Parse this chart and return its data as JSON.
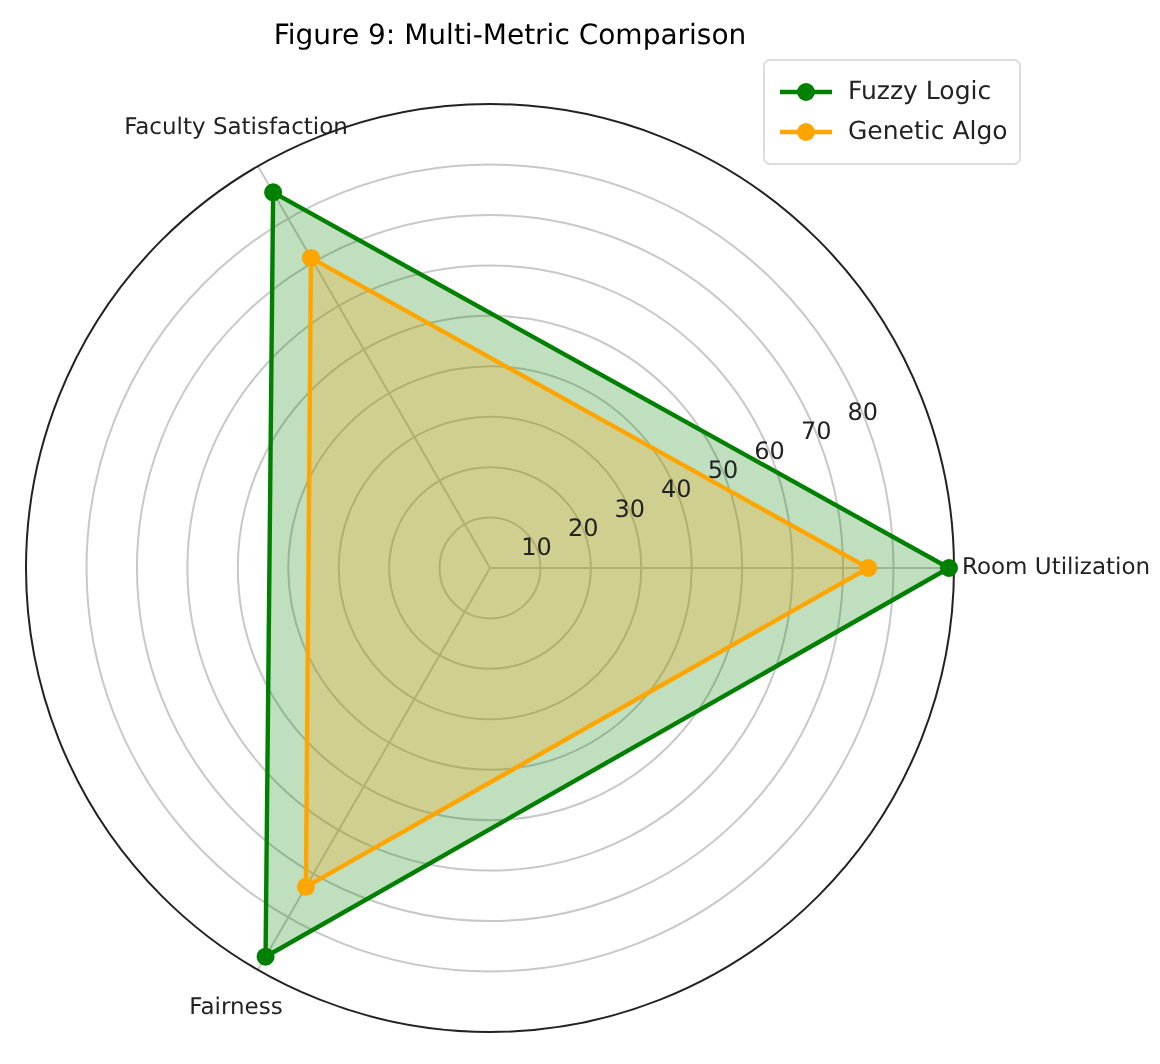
{
  "chart_data": {
    "type": "radar",
    "title": "Figure 9: Multi-Metric Comparison",
    "categories": [
      "Room Utilization",
      "Fairness",
      "Faculty Satisfaction"
    ],
    "series": [
      {
        "name": "Fuzzy Logic",
        "color": "#008000",
        "values": [
          91,
          89,
          86
        ]
      },
      {
        "name": "Genetic Algo",
        "color": "#ffa500",
        "values": [
          75,
          73,
          71
        ]
      }
    ],
    "ylim": [
      0,
      92
    ],
    "yticks": [
      10,
      20,
      30,
      40,
      50,
      60,
      70,
      80
    ],
    "grid": true,
    "legend": "top right",
    "marker": "circle",
    "line_style": "solid"
  }
}
